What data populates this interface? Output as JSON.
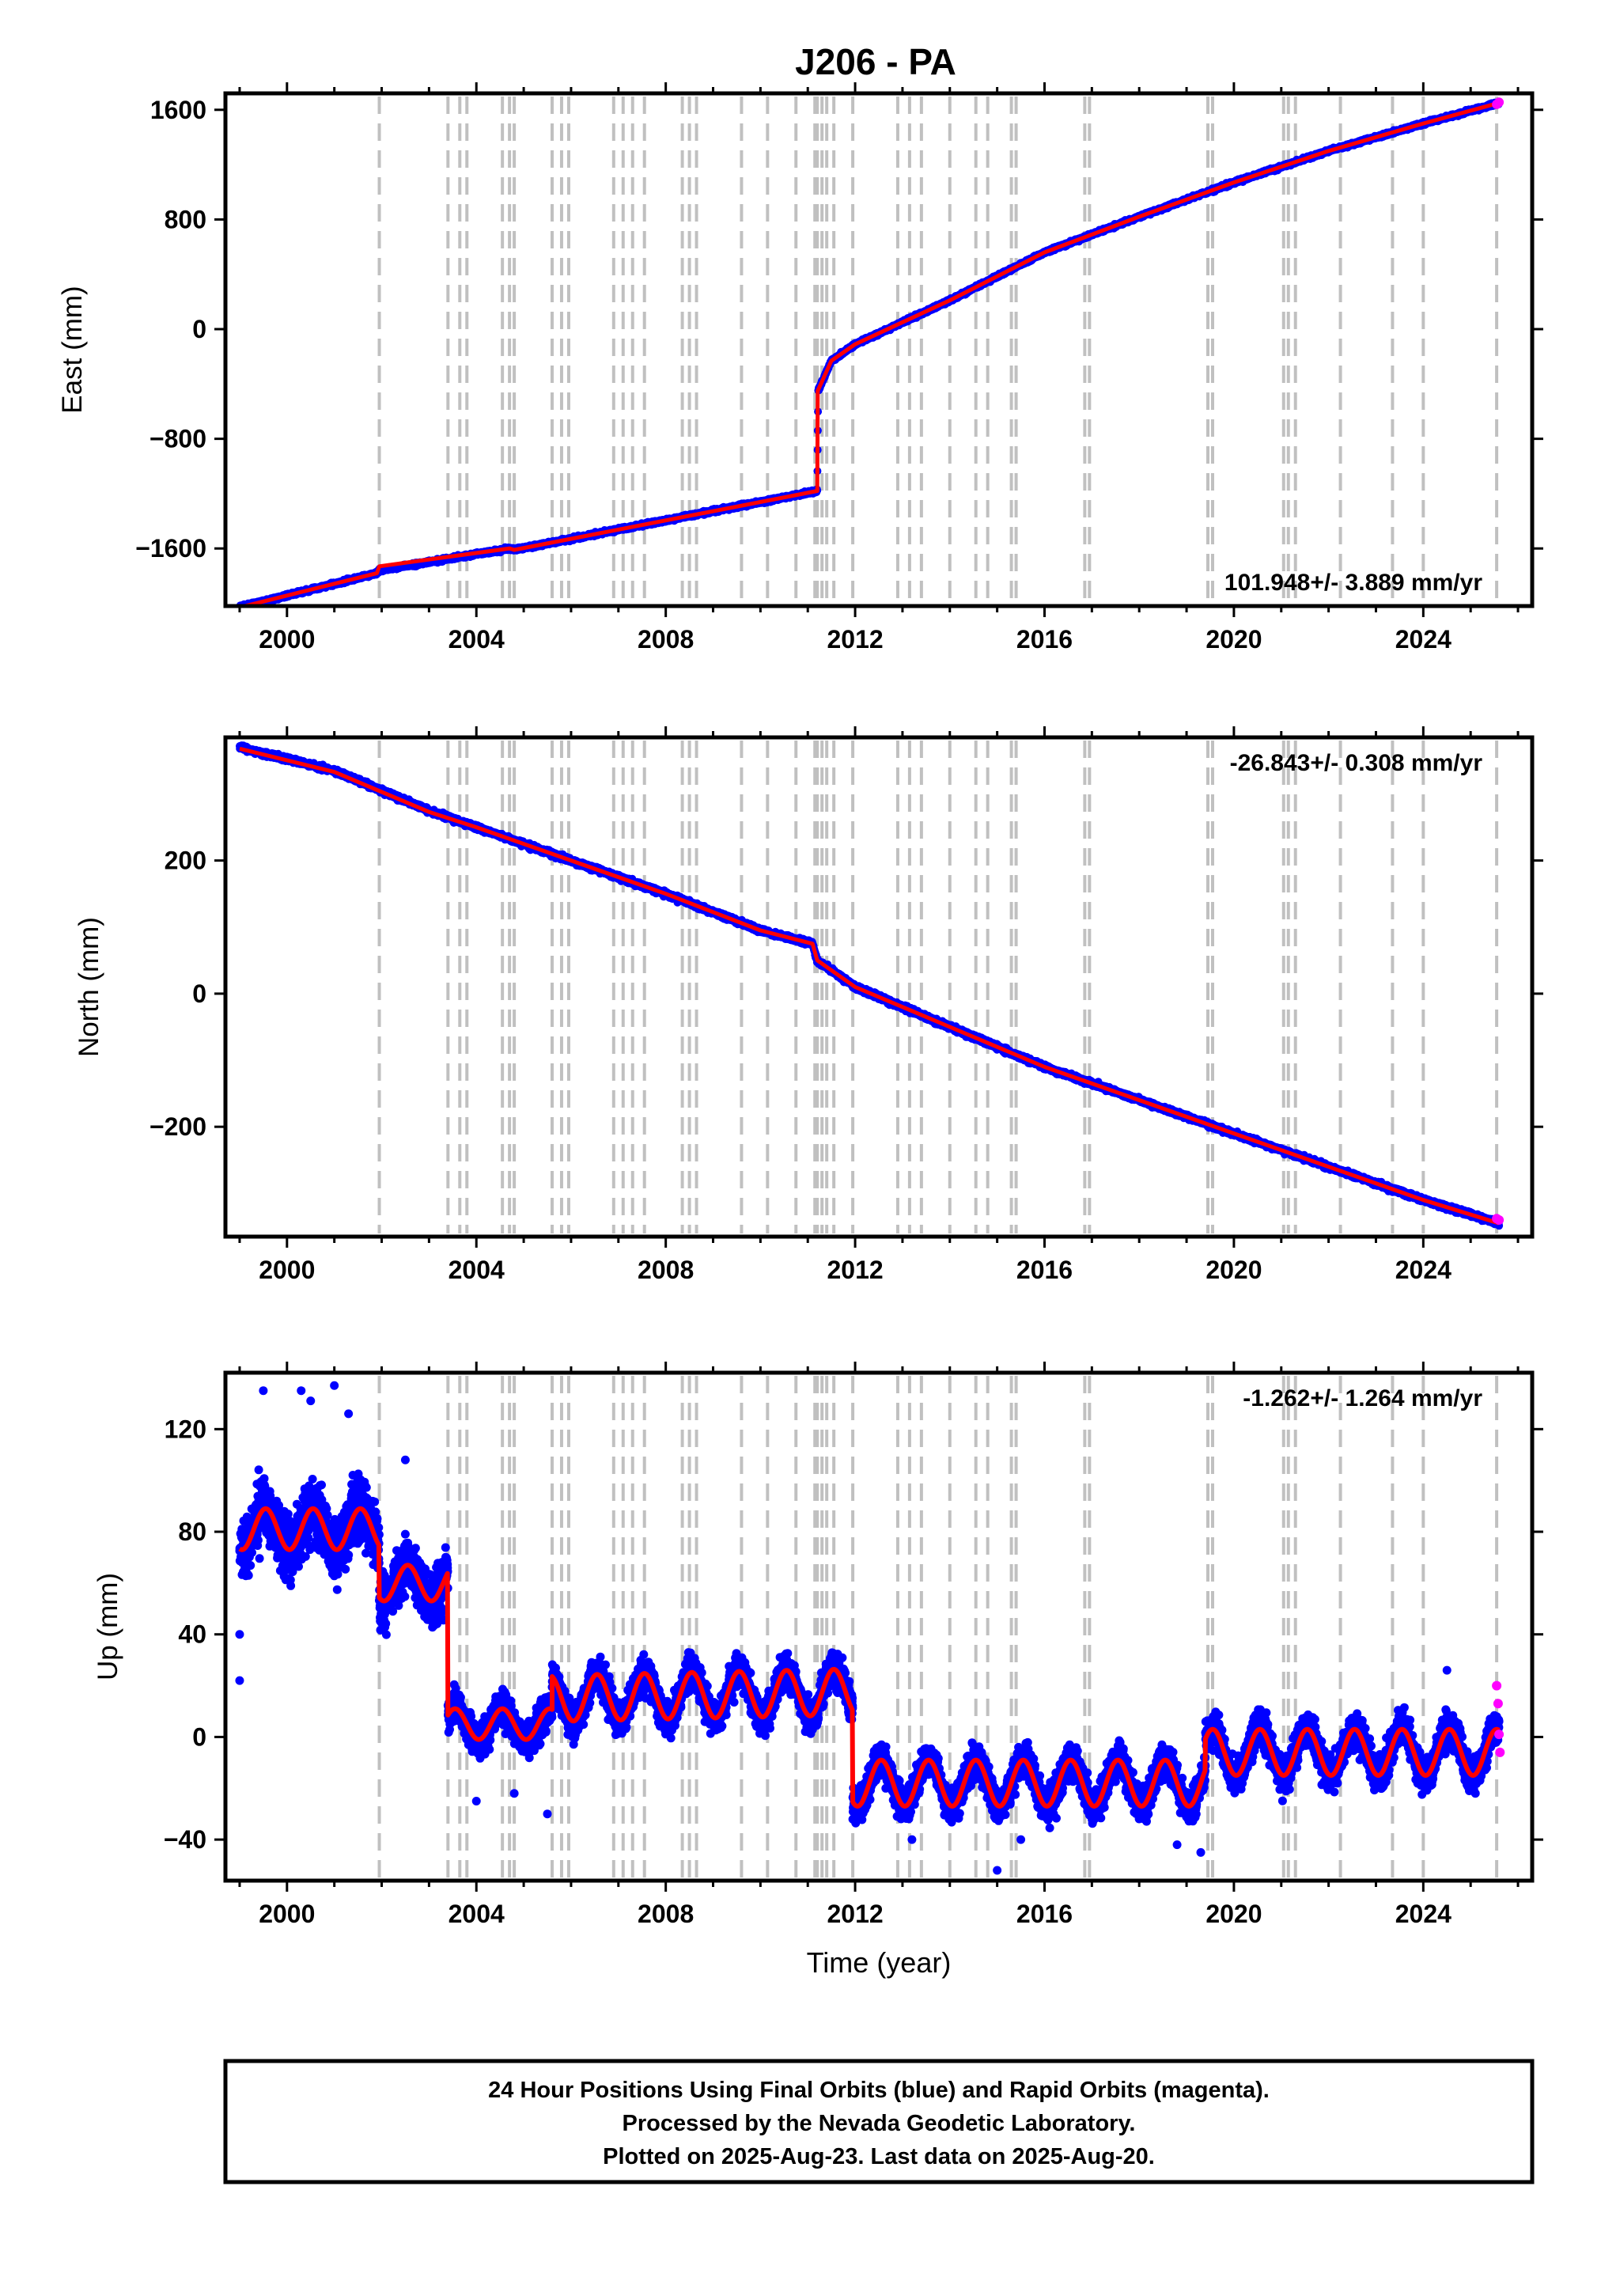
{
  "title": "J206 - PA",
  "colors": {
    "final_orbits": "#0000ff",
    "rapid_orbits": "#ff00ff",
    "model": "#ff0000",
    "event_lines": "#c0c0c0",
    "frame": "#000000"
  },
  "footer": {
    "line1": "24 Hour Positions Using Final Orbits (blue) and Rapid Orbits (magenta).",
    "line2": "Processed by the Nevada Geodetic Laboratory.",
    "line3": "Plotted on 2025-Aug-23. Last data on 2025-Aug-20."
  },
  "chart_data": [
    {
      "type": "scatter",
      "name": "east",
      "ylabel": "East (mm)",
      "xlabel": "",
      "rate_label": "101.948+/- 3.889 mm/yr",
      "rate_position": "bottom-right",
      "xlim": [
        1998.7,
        2026.3
      ],
      "ylim": [
        -2020,
        1720
      ],
      "xticks": [
        2000,
        2004,
        2008,
        2012,
        2016,
        2020,
        2024
      ],
      "xtick_labels": [
        "2000",
        "2004",
        "2008",
        "2012",
        "2016",
        "2020",
        "2024"
      ],
      "yticks": [
        -1600,
        -800,
        0,
        800,
        1600
      ],
      "ytick_labels": [
        "−1600",
        "−800",
        "0",
        "800",
        "1600"
      ],
      "grid": false,
      "series": [
        {
          "role": "final_orbits",
          "x": [
            1999.0,
            2001.9,
            2001.95,
            2004.7,
            2004.8,
            2011.2,
            2011.22,
            2011.5,
            2012.0,
            2013.0,
            2014.0,
            2016.0,
            2018.0,
            2020.0,
            2022.0,
            2024.0,
            2025.6
          ],
          "y": [
            -2030,
            -1780,
            -1760,
            -1600,
            -1610,
            -1180,
            -450,
            -230,
            -110,
            50,
            210,
            560,
            820,
            1070,
            1300,
            1500,
            1650
          ]
        },
        {
          "role": "model",
          "x": [
            1999.0,
            2001.9,
            2001.95,
            2004.7,
            2004.8,
            2011.2,
            2011.21,
            2011.5,
            2012.0,
            2013.0,
            2014.0,
            2016.0,
            2018.0,
            2020.0,
            2022.0,
            2024.0,
            2025.6
          ],
          "y": [
            -2030,
            -1780,
            -1730,
            -1600,
            -1610,
            -1180,
            -450,
            -230,
            -110,
            50,
            210,
            560,
            820,
            1070,
            1300,
            1500,
            1650
          ]
        },
        {
          "role": "rapid_orbits",
          "x": [
            2025.55,
            2025.6
          ],
          "y": [
            1640,
            1655
          ]
        }
      ]
    },
    {
      "type": "scatter",
      "name": "north",
      "ylabel": "North (mm)",
      "xlabel": "",
      "rate_label": "-26.843+/- 0.308 mm/yr",
      "rate_position": "top-right",
      "xlim": [
        1998.7,
        2026.3
      ],
      "ylim": [
        -365,
        385
      ],
      "xticks": [
        2000,
        2004,
        2008,
        2012,
        2016,
        2020,
        2024
      ],
      "xtick_labels": [
        "2000",
        "2004",
        "2008",
        "2012",
        "2016",
        "2020",
        "2024"
      ],
      "yticks": [
        -200,
        0,
        200
      ],
      "ytick_labels": [
        "−200",
        "0",
        "200"
      ],
      "grid": false,
      "series": [
        {
          "role": "final_orbits",
          "x": [
            1999.0,
            2001.0,
            2003.0,
            2004.0,
            2006.0,
            2008.0,
            2010.0,
            2011.1,
            2011.2,
            2012.0,
            2014.0,
            2016.0,
            2018.0,
            2020.0,
            2022.0,
            2024.0,
            2025.6
          ],
          "y": [
            370,
            335,
            275,
            250,
            200,
            150,
            95,
            75,
            50,
            10,
            -50,
            -110,
            -160,
            -210,
            -260,
            -310,
            -345
          ]
        },
        {
          "role": "model",
          "x": [
            1999.0,
            2001.0,
            2003.0,
            2004.0,
            2006.0,
            2008.0,
            2010.0,
            2011.1,
            2011.2,
            2012.0,
            2014.0,
            2016.0,
            2018.0,
            2020.0,
            2022.0,
            2024.0,
            2025.6
          ],
          "y": [
            368,
            333,
            273,
            250,
            200,
            150,
            95,
            75,
            50,
            10,
            -50,
            -110,
            -160,
            -210,
            -260,
            -310,
            -345
          ]
        },
        {
          "role": "rapid_orbits",
          "x": [
            2025.55,
            2025.6
          ],
          "y": [
            -338,
            -340
          ]
        }
      ]
    },
    {
      "type": "scatter",
      "name": "up",
      "ylabel": "Up (mm)",
      "xlabel": "Time (year)",
      "rate_label": "-1.262+/- 1.264 mm/yr",
      "rate_position": "top-right",
      "xlim": [
        1998.7,
        2026.3
      ],
      "ylim": [
        -56,
        142
      ],
      "xticks": [
        2000,
        2004,
        2008,
        2012,
        2016,
        2020,
        2024
      ],
      "xtick_labels": [
        "2000",
        "2004",
        "2008",
        "2012",
        "2016",
        "2020",
        "2024"
      ],
      "yticks": [
        -40,
        0,
        40,
        80,
        120
      ],
      "ytick_labels": [
        "−40",
        "0",
        "40",
        "80",
        "120"
      ],
      "grid": false,
      "segments": [
        {
          "start": 1999.0,
          "end": 2001.95,
          "mean": 81,
          "trend_per_year": 0.0,
          "amplitude": 8,
          "scatter": 9
        },
        {
          "start": 2001.95,
          "end": 2003.4,
          "mean": 60,
          "trend_per_year": 0.0,
          "amplitude": 7,
          "scatter": 8
        },
        {
          "start": 2003.4,
          "end": 2005.6,
          "mean": 5,
          "trend_per_year": 0.0,
          "amplitude": 6,
          "scatter": 5
        },
        {
          "start": 2005.6,
          "end": 2011.95,
          "mean": 15,
          "trend_per_year": 0.4,
          "amplitude": 9,
          "scatter": 5
        },
        {
          "start": 2011.95,
          "end": 2019.4,
          "mean": -18,
          "trend_per_year": 0.0,
          "amplitude": 9,
          "scatter": 5
        },
        {
          "start": 2019.4,
          "end": 2025.6,
          "mean": -6,
          "trend_per_year": 0.0,
          "amplitude": 9,
          "scatter": 5
        }
      ],
      "outliers": {
        "x": [
          1999.0,
          1999.0,
          1999.5,
          2000.3,
          2000.5,
          2001.0,
          2001.3,
          2002.5,
          2004.0,
          2004.8,
          2005.5,
          2013.2,
          2015.0,
          2015.5,
          2018.8,
          2019.3,
          2024.5
        ],
        "y": [
          22,
          40,
          135,
          135,
          131,
          137,
          126,
          108,
          -25,
          -22,
          -30,
          -40,
          -52,
          -40,
          -42,
          -45,
          26
        ]
      },
      "series": [
        {
          "role": "rapid_orbits",
          "x": [
            2025.55,
            2025.58,
            2025.6,
            2025.62
          ],
          "y": [
            20,
            13,
            1,
            -6
          ]
        }
      ]
    }
  ],
  "event_lines": [
    2001.95,
    2003.4,
    2003.65,
    2003.8,
    2004.55,
    2004.7,
    2004.8,
    2005.6,
    2005.8,
    2005.95,
    2006.9,
    2007.1,
    2007.3,
    2007.55,
    2008.35,
    2008.5,
    2008.65,
    2009.6,
    2010.15,
    2010.75,
    2011.15,
    2011.2,
    2011.3,
    2011.4,
    2011.55,
    2011.95,
    2012.9,
    2013.15,
    2013.4,
    2014.0,
    2014.55,
    2014.8,
    2015.3,
    2015.4,
    2016.85,
    2016.95,
    2019.45,
    2019.55,
    2021.05,
    2021.15,
    2021.3,
    2022.25,
    2023.35,
    2024.0,
    2025.55
  ]
}
